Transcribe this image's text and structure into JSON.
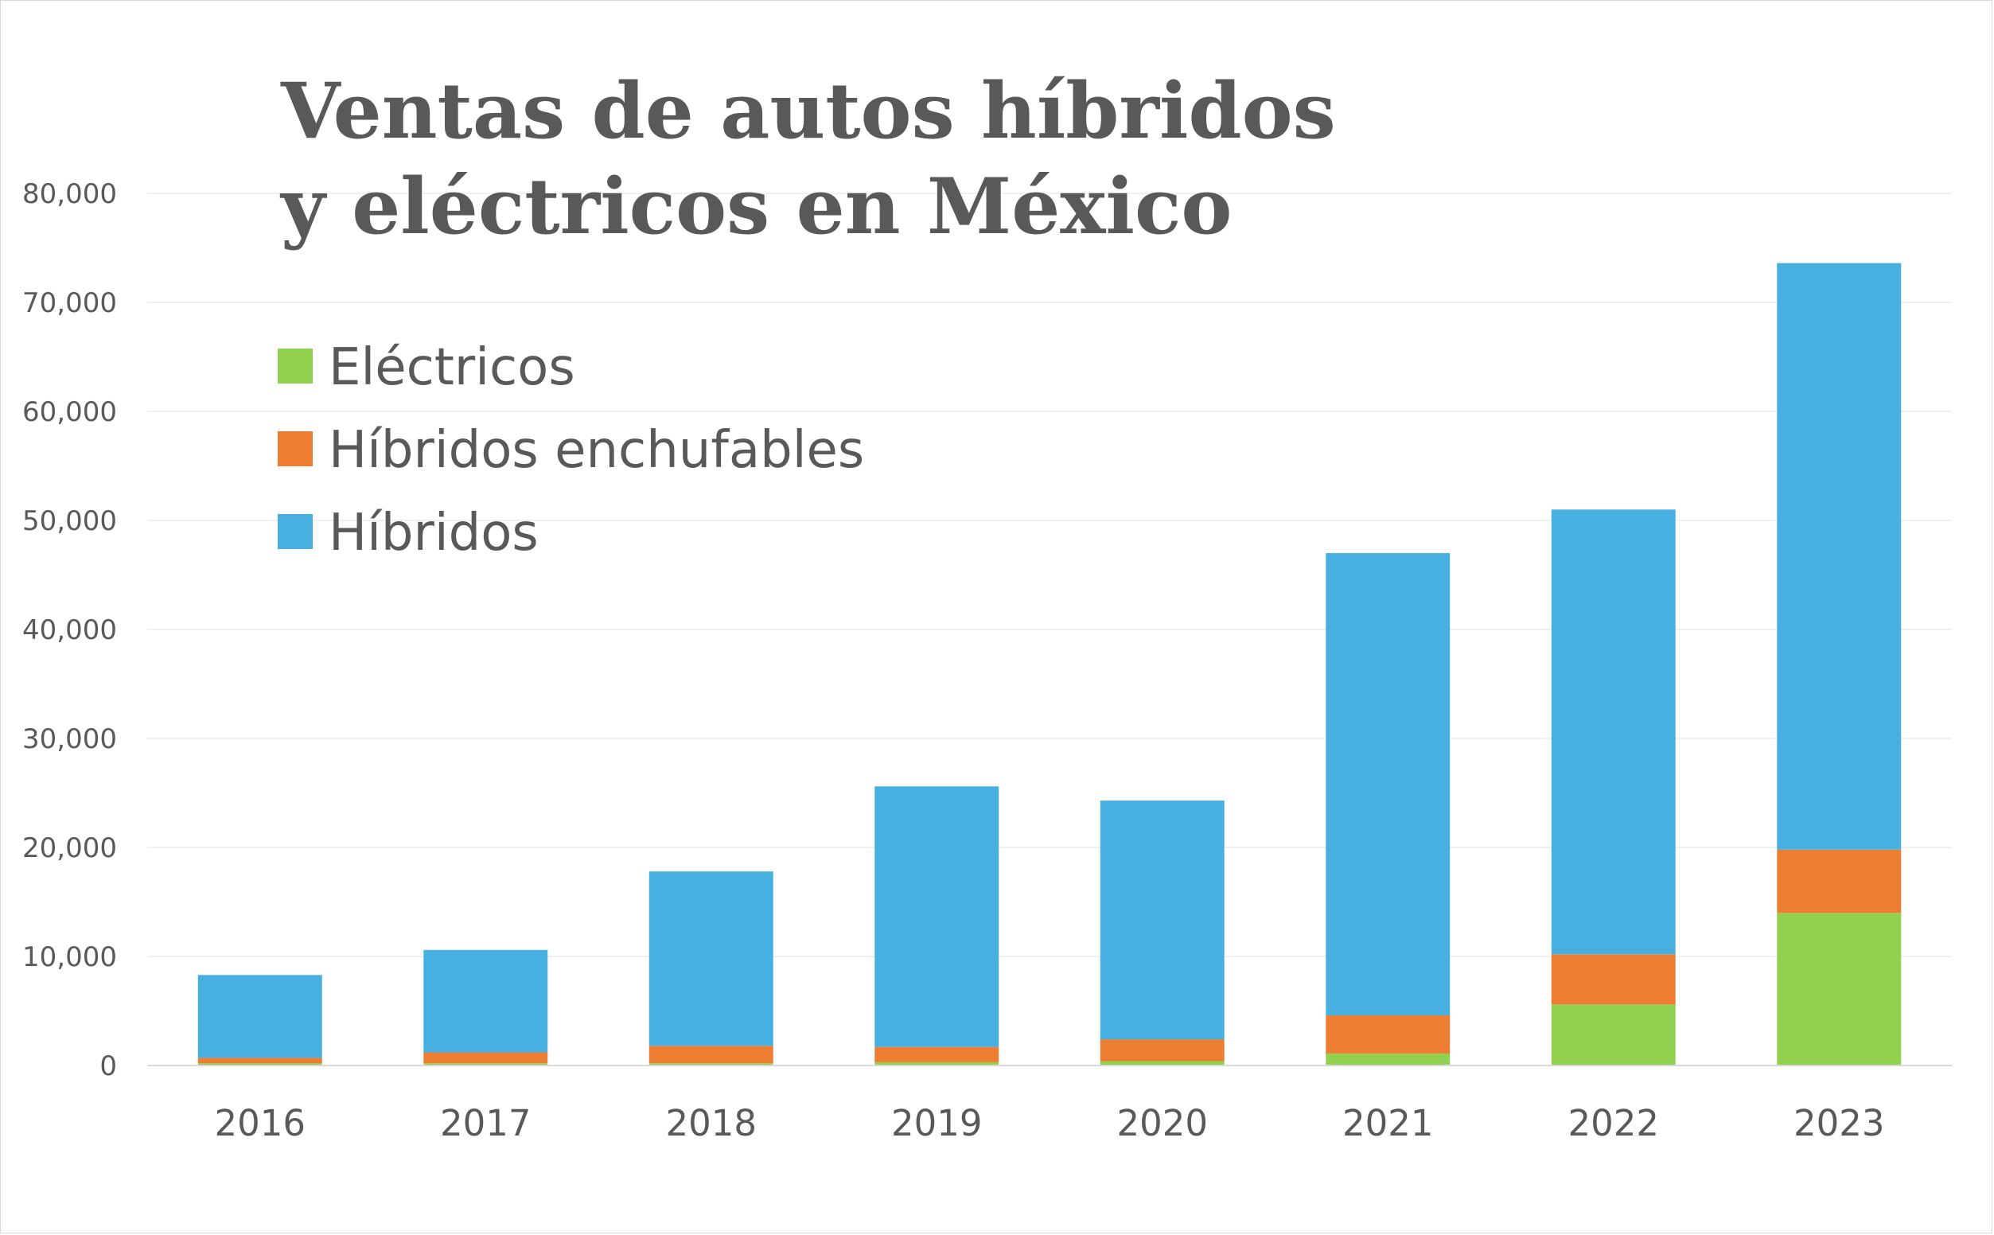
{
  "chart_data": {
    "type": "bar",
    "stacked": true,
    "title": "Ventas de autos híbridos y eléctricos en México",
    "title_lines": [
      "Ventas de autos híbridos",
      "y eléctricos en México"
    ],
    "xlabel": "",
    "ylabel": "",
    "ylim": [
      0,
      80000
    ],
    "yticks": [
      0,
      10000,
      20000,
      30000,
      40000,
      50000,
      60000,
      70000,
      80000
    ],
    "ytick_labels": [
      "0",
      "10,000",
      "20,000",
      "30,000",
      "40,000",
      "50,000",
      "60,000",
      "70,000",
      "80,000"
    ],
    "categories": [
      "2016",
      "2017",
      "2018",
      "2019",
      "2020",
      "2021",
      "2022",
      "2023"
    ],
    "grid": true,
    "legend_position": "top-left",
    "series": [
      {
        "name": "Eléctricos",
        "color": "#92d050",
        "values": [
          200,
          200,
          200,
          300,
          400,
          1100,
          5600,
          14000
        ]
      },
      {
        "name": "Híbridos enchufables",
        "color": "#ed7d31",
        "values": [
          500,
          1000,
          1600,
          1400,
          2000,
          3500,
          4600,
          5800
        ]
      },
      {
        "name": "Híbridos",
        "color": "#47b0e0",
        "values": [
          7600,
          9400,
          16000,
          23900,
          21900,
          42400,
          40800,
          53800
        ]
      }
    ]
  }
}
